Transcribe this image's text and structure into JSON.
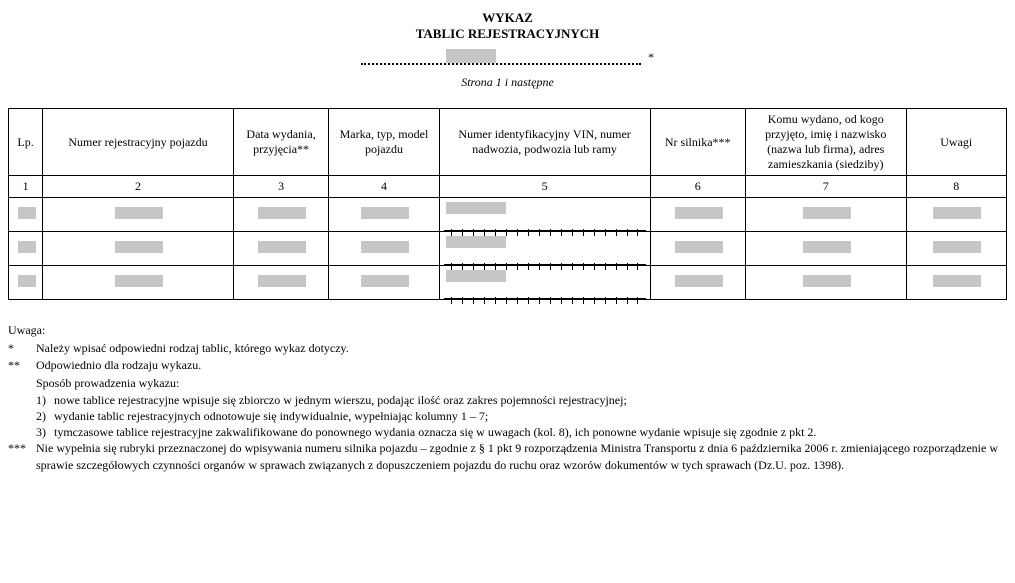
{
  "header": {
    "title1": "WYKAZ",
    "title2": "TABLIC REJESTRACYJNYCH",
    "asterisk": "*",
    "page_label": "Strona 1 i następne"
  },
  "table": {
    "columns": [
      "Lp.",
      "Numer rejestracyjny pojazdu",
      "Data wydania, przyjęcia**",
      "Marka, typ, model pojazdu",
      "Numer identyfikacyjny VIN, numer nadwozia, podwozia lub ramy",
      "Nr silnika***",
      "Komu wydano, od kogo przyjęto, imię i nazwisko (nazwa lub firma), adres zamieszkania (siedziby)",
      "Uwagi"
    ],
    "col_numbers": [
      "1",
      "2",
      "3",
      "4",
      "5",
      "6",
      "7",
      "8"
    ],
    "vin_tick_count": 17,
    "data_rows": 3,
    "colors": {
      "placeholder": "#c6c6c6",
      "border": "#000000",
      "background": "#ffffff",
      "text": "#000000"
    }
  },
  "notes": {
    "heading": "Uwaga:",
    "items": [
      {
        "mark": "*",
        "text": "Należy wpisać odpowiedni rodzaj tablic, którego wykaz dotyczy."
      },
      {
        "mark": "**",
        "text": "Odpowiednio dla rodzaju wykazu."
      },
      {
        "mark": "",
        "text": "Sposób prowadzenia wykazu:"
      },
      {
        "mark": "",
        "sub": "1)",
        "text": "nowe tablice rejestracyjne wpisuje się zbiorczo w jednym wierszu, podając ilość oraz zakres pojemności rejestracyjnej;"
      },
      {
        "mark": "",
        "sub": "2)",
        "text": "wydanie tablic rejestracyjnych odnotowuje się indywidualnie, wypełniając kolumny 1 – 7;"
      },
      {
        "mark": "",
        "sub": "3)",
        "text": "tymczasowe tablice rejestracyjne zakwalifikowane do ponownego wydania oznacza się w uwagach (kol. 8), ich ponowne wydanie wpisuje się zgodnie z pkt 2."
      },
      {
        "mark": "***",
        "text": "Nie wypełnia się rubryki przeznaczonej do wpisywania numeru silnika pojazdu – zgodnie z § 1 pkt 9 rozporządzenia Ministra Transportu z dnia 6 października 2006 r. zmieniającego rozporządzenie w sprawie szczegółowych czynności organów w sprawach związanych z dopuszczeniem pojazdu do ruchu oraz wzorów dokumentów w tych sprawach (Dz.U. poz. 1398)."
      }
    ]
  }
}
